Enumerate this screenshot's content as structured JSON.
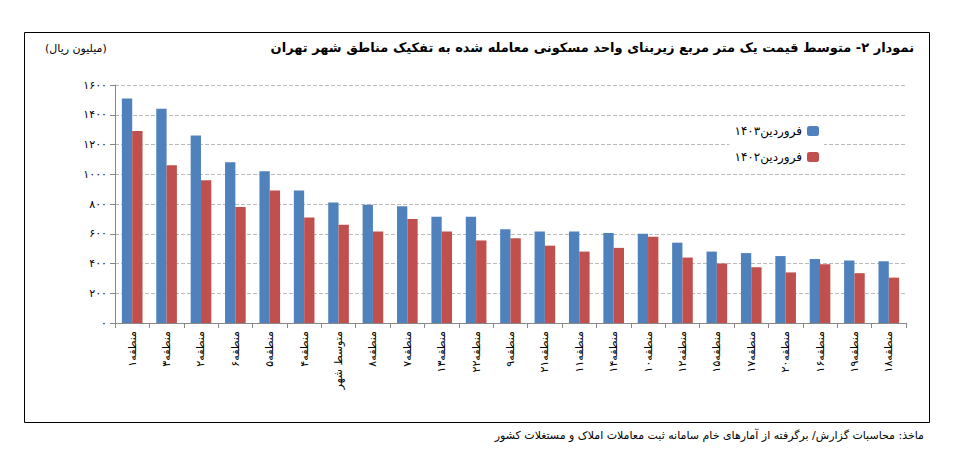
{
  "chart_data": {
    "type": "bar",
    "title": "نمودار ۲- متوسط قیمت یک متر مربع زیربنای واحد مسکونی معامله شده به تفکیک مناطق شهر تهران",
    "ylabel": "(میلیون ریال)",
    "source": "ماخذ: محاسبات گزارش/ برگرفته از آمارهای خام سامانه ثبت معاملات املاک و مستغلات کشور",
    "categories": [
      "منطقه۱",
      "منطقه۳",
      "منطقه۲",
      "منطقه۶",
      "منطقه۵",
      "منطقه۴",
      "متوسط شهر",
      "منطقه۸",
      "منطقه۷",
      "منطقه۱۳",
      "منطقه۲۲",
      "منطقه۹",
      "منطقه۲۱",
      "منطقه۱۱",
      "منطقه۱۴",
      "منطقه۱۰",
      "منطقه۱۲",
      "منطقه۱۵",
      "منطقه۱۷",
      "منطقه۲۰",
      "منطقه۱۶",
      "منطقه۱۹",
      "منطقه۱۸"
    ],
    "series": [
      {
        "name": "فروردین۱۴۰۳",
        "color": "#4f81bd",
        "values": [
          1510,
          1440,
          1260,
          1080,
          1020,
          890,
          810,
          795,
          785,
          715,
          715,
          630,
          615,
          615,
          605,
          600,
          540,
          480,
          470,
          450,
          430,
          420,
          415
        ]
      },
      {
        "name": "فروردین۱۴۰۲",
        "color": "#c0504d",
        "values": [
          1290,
          1060,
          960,
          780,
          890,
          710,
          660,
          615,
          700,
          615,
          555,
          570,
          520,
          480,
          505,
          580,
          440,
          400,
          375,
          340,
          395,
          335,
          305
        ]
      }
    ],
    "ylim": [
      0,
      1600
    ],
    "yticks": [
      {
        "value": 0,
        "label": "۰"
      },
      {
        "value": 200,
        "label": "۲۰۰"
      },
      {
        "value": 400,
        "label": "۴۰۰"
      },
      {
        "value": 600,
        "label": "۶۰۰"
      },
      {
        "value": 800,
        "label": "۸۰۰"
      },
      {
        "value": 1000,
        "label": "۱۰۰۰"
      },
      {
        "value": 1200,
        "label": "۱۲۰۰"
      },
      {
        "value": 1400,
        "label": "۱۴۰۰"
      },
      {
        "value": 1600,
        "label": "۱۶۰۰"
      }
    ],
    "grid": true,
    "legend": "upper right"
  }
}
